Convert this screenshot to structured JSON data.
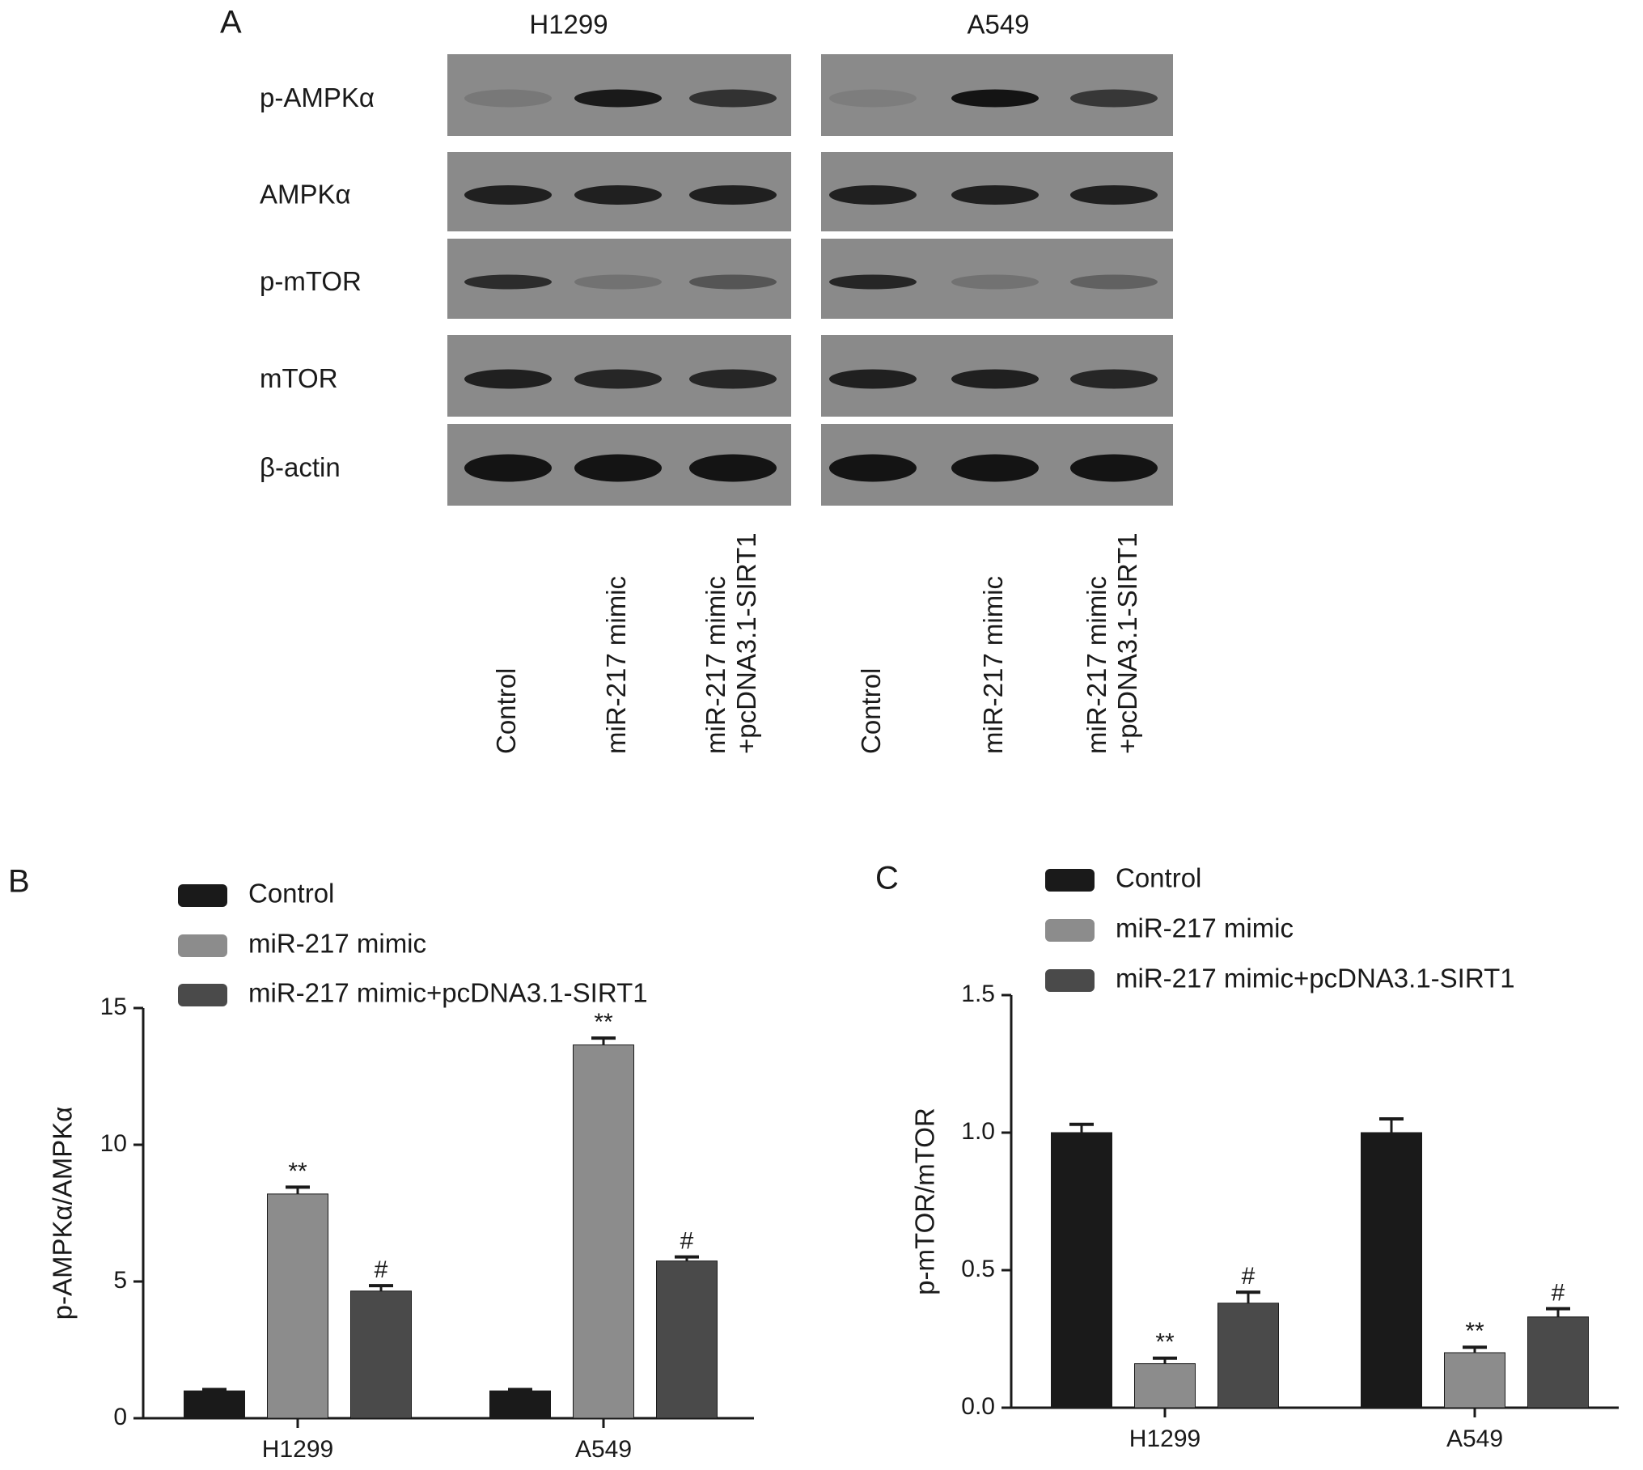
{
  "blot": {
    "panel_label": "A",
    "cell_lines": [
      "H1299",
      "A549"
    ],
    "proteins": [
      "p-AMPKα",
      "AMPKα",
      "p-mTOR",
      "mTOR",
      "β-actin"
    ],
    "lanes": [
      [
        "Control"
      ],
      [
        "miR-217 mimic"
      ],
      [
        "miR-217 mimic",
        "+pcDNA3.1-SIRT1"
      ]
    ]
  },
  "chart_data": [
    {
      "type": "bar",
      "panel_label": "B",
      "ylabel": "p-AMPKα/AMPKα",
      "categories": [
        "H1299",
        "A549"
      ],
      "series": [
        {
          "name": "Control",
          "color": "#1a1a1a",
          "values": [
            1.0,
            1.0
          ],
          "errors": [
            0.05,
            0.05
          ],
          "significance": [
            null,
            null
          ]
        },
        {
          "name": "miR-217 mimic",
          "color": "#8c8c8c",
          "values": [
            8.2,
            13.65
          ],
          "errors": [
            0.25,
            0.25
          ],
          "significance": [
            "**",
            "**"
          ]
        },
        {
          "name": "miR-217 mimic+pcDNA3.1-SIRT1",
          "color": "#4a4a4a",
          "values": [
            4.65,
            5.75
          ],
          "errors": [
            0.2,
            0.15
          ],
          "significance": [
            "#",
            "#"
          ]
        }
      ],
      "ylim": [
        0,
        15
      ],
      "yticks": [
        0,
        5,
        10,
        15
      ]
    },
    {
      "type": "bar",
      "panel_label": "C",
      "ylabel": "p-mTOR/mTOR",
      "categories": [
        "H1299",
        "A549"
      ],
      "series": [
        {
          "name": "Control",
          "color": "#1a1a1a",
          "values": [
            1.0,
            1.0
          ],
          "errors": [
            0.03,
            0.05
          ],
          "significance": [
            null,
            null
          ]
        },
        {
          "name": "miR-217 mimic",
          "color": "#8c8c8c",
          "values": [
            0.16,
            0.2
          ],
          "errors": [
            0.02,
            0.02
          ],
          "significance": [
            "**",
            "**"
          ]
        },
        {
          "name": "miR-217 mimic+pcDNA3.1-SIRT1",
          "color": "#4a4a4a",
          "values": [
            0.38,
            0.33
          ],
          "errors": [
            0.04,
            0.03
          ],
          "significance": [
            "#",
            "#"
          ]
        }
      ],
      "ylim": [
        0,
        1.5
      ],
      "yticks": [
        {
          "value": 0,
          "label": "0.0"
        },
        0.5,
        {
          "value": 1,
          "label": "1.0"
        },
        1.5
      ]
    }
  ]
}
